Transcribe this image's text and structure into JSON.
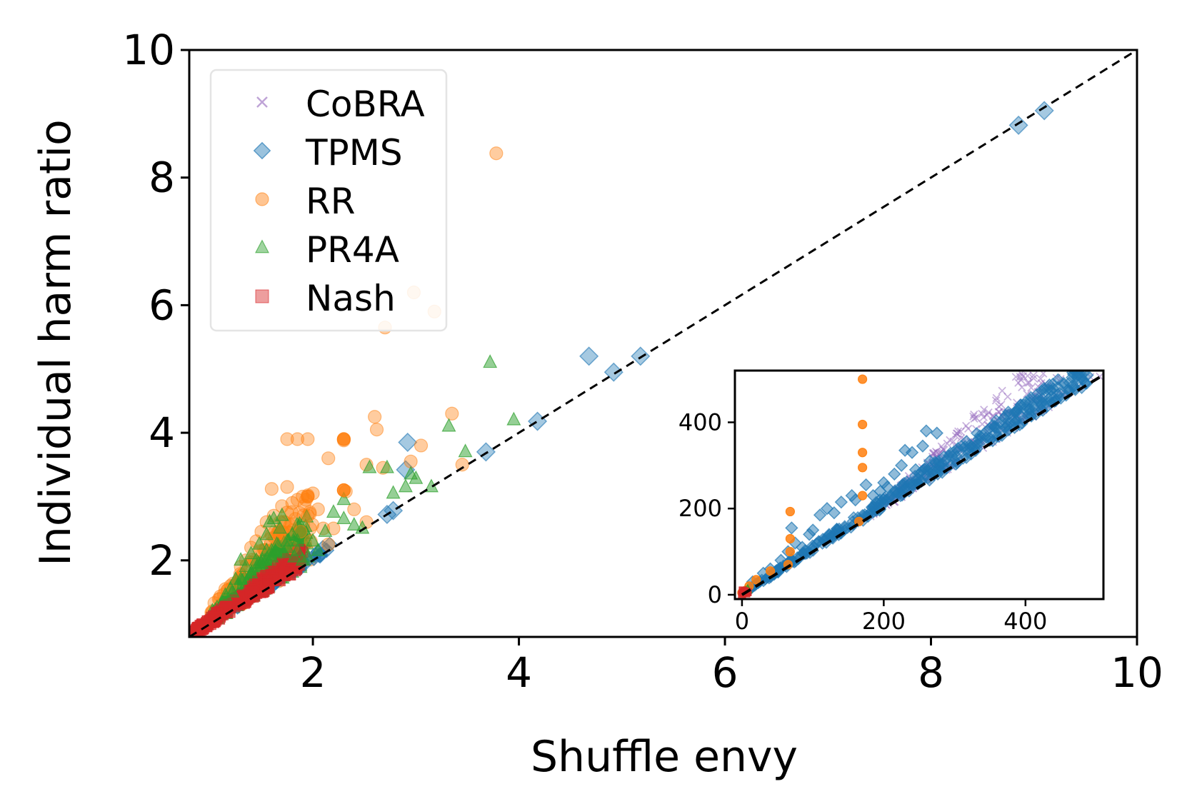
{
  "chart_data": [
    {
      "type": "scatter",
      "title": "",
      "xlabel": "Shuffle envy",
      "ylabel": "Individual harm ratio",
      "xlim": [
        0.8,
        10
      ],
      "ylim": [
        0.8,
        10
      ],
      "xticks": [
        2,
        4,
        6,
        8,
        10
      ],
      "yticks": [
        2,
        4,
        6,
        8,
        10
      ],
      "xtick_labels": [
        "2",
        "4",
        "6",
        "8",
        "10"
      ],
      "ytick_labels": [
        "2",
        "4",
        "6",
        "8",
        "10"
      ],
      "legend_position": "top-left",
      "reference_line": {
        "type": "y=x",
        "style": "dashed",
        "color": "#000000"
      },
      "series": [
        {
          "name": "CoBRA",
          "marker": "x",
          "color": "#9467bd",
          "points": []
        },
        {
          "name": "TPMS",
          "marker": "diamond",
          "color": "#1f77b4",
          "points": [
            [
              8.85,
              8.82
            ],
            [
              9.1,
              9.05
            ],
            [
              4.68,
              5.2
            ],
            [
              4.92,
              4.95
            ],
            [
              5.18,
              5.2
            ],
            [
              2.92,
              3.85
            ],
            [
              2.9,
              3.42
            ],
            [
              4.18,
              4.18
            ],
            [
              3.68,
              3.7
            ],
            [
              2.78,
              2.78
            ],
            [
              2.72,
              2.72
            ]
          ]
        },
        {
          "name": "RR",
          "marker": "circle",
          "color": "#ff7f0e",
          "points": [
            [
              3.78,
              8.38
            ],
            [
              2.98,
              6.2
            ],
            [
              3.18,
              5.9
            ],
            [
              2.7,
              5.65
            ],
            [
              2.6,
              4.25
            ],
            [
              2.62,
              4.05
            ],
            [
              2.3,
              3.9
            ],
            [
              2.3,
              3.88
            ],
            [
              1.75,
              3.9
            ],
            [
              1.85,
              3.9
            ],
            [
              1.95,
              3.9
            ],
            [
              3.35,
              4.3
            ],
            [
              3.05,
              3.8
            ],
            [
              2.95,
              3.55
            ],
            [
              2.52,
              3.5
            ],
            [
              2.68,
              3.45
            ],
            [
              3.45,
              3.5
            ],
            [
              2.15,
              3.6
            ],
            [
              2.3,
              3.1
            ],
            [
              2.32,
              3.08
            ],
            [
              1.6,
              3.12
            ],
            [
              1.75,
              3.15
            ],
            [
              1.9,
              3.0
            ],
            [
              2.0,
              3.05
            ],
            [
              1.8,
              2.9
            ],
            [
              1.7,
              2.85
            ],
            [
              1.62,
              2.7
            ],
            [
              1.55,
              2.6
            ],
            [
              1.75,
              2.75
            ],
            [
              1.85,
              2.95
            ],
            [
              1.95,
              3.02
            ],
            [
              2.05,
              2.8
            ],
            [
              2.1,
              2.5
            ],
            [
              2.2,
              2.5
            ],
            [
              2.15,
              2.25
            ],
            [
              1.98,
              2.3
            ],
            [
              1.88,
              2.45
            ],
            [
              1.78,
              2.55
            ],
            [
              1.68,
              2.6
            ],
            [
              1.5,
              2.45
            ],
            [
              1.45,
              2.3
            ],
            [
              1.4,
              2.2
            ],
            [
              1.35,
              2.0
            ],
            [
              1.3,
              1.9
            ],
            [
              1.6,
              2.4
            ],
            [
              1.7,
              2.3
            ],
            [
              1.8,
              2.2
            ],
            [
              2.4,
              2.8
            ],
            [
              2.52,
              2.6
            ],
            [
              1.95,
              2.7
            ],
            [
              1.2,
              1.6
            ],
            [
              1.15,
              1.55
            ]
          ]
        },
        {
          "name": "PR4A",
          "marker": "triangle",
          "color": "#2ca02c",
          "points": [
            [
              3.72,
              5.1
            ],
            [
              3.95,
              4.2
            ],
            [
              3.32,
              4.1
            ],
            [
              3.48,
              3.7
            ],
            [
              2.55,
              3.45
            ],
            [
              2.72,
              3.45
            ],
            [
              2.95,
              3.35
            ],
            [
              3.0,
              3.28
            ],
            [
              2.9,
              3.15
            ],
            [
              2.78,
              3.05
            ],
            [
              3.15,
              3.15
            ],
            [
              2.3,
              2.95
            ],
            [
              2.48,
              2.5
            ],
            [
              2.4,
              2.55
            ],
            [
              2.2,
              2.75
            ],
            [
              2.12,
              2.45
            ],
            [
              2.0,
              2.3
            ],
            [
              2.05,
              2.15
            ],
            [
              1.82,
              2.05
            ],
            [
              1.75,
              2.3
            ],
            [
              1.68,
              2.5
            ],
            [
              1.62,
              2.65
            ],
            [
              1.55,
              2.4
            ],
            [
              1.48,
              2.25
            ],
            [
              1.4,
              2.1
            ],
            [
              1.3,
              2.0
            ],
            [
              1.2,
              1.55
            ],
            [
              1.22,
              1.5
            ],
            [
              1.15,
              1.45
            ],
            [
              1.25,
              1.7
            ],
            [
              1.35,
              1.9
            ],
            [
              1.45,
              2.0
            ],
            [
              1.55,
              2.15
            ],
            [
              1.65,
              2.25
            ],
            [
              1.75,
              2.2
            ],
            [
              1.85,
              2.15
            ],
            [
              1.9,
              2.0
            ],
            [
              1.95,
              2.05
            ],
            [
              1.58,
              2.6
            ],
            [
              1.7,
              2.7
            ],
            [
              1.8,
              2.4
            ],
            [
              2.3,
              2.65
            ],
            [
              1.3,
              1.7
            ],
            [
              1.4,
              1.8
            ],
            [
              1.5,
              1.95
            ],
            [
              1.6,
              2.05
            ],
            [
              1.72,
              2.12
            ],
            [
              1.85,
              2.3
            ]
          ]
        },
        {
          "name": "Nash",
          "marker": "square",
          "color": "#d62728",
          "points": []
        }
      ]
    },
    {
      "type": "scatter",
      "role": "inset",
      "xlim": [
        -10,
        510
      ],
      "ylim": [
        -10,
        520
      ],
      "xticks": [
        0,
        200,
        400
      ],
      "yticks": [
        0,
        200,
        400
      ],
      "xtick_labels": [
        "0",
        "200",
        "400"
      ],
      "ytick_labels": [
        "0",
        "200",
        "400"
      ],
      "reference_line": {
        "type": "y=x",
        "style": "dashed",
        "color": "#000000"
      },
      "series": [
        {
          "name": "CoBRA",
          "marker": "x",
          "color": "#9467bd",
          "points": []
        },
        {
          "name": "TPMS",
          "marker": "diamond",
          "color": "#1f77b4",
          "points": [
            [
              260,
              380
            ],
            [
              275,
              375
            ],
            [
              240,
              330
            ],
            [
              230,
              335
            ],
            [
              255,
              345
            ],
            [
              200,
              260
            ],
            [
              205,
              250
            ],
            [
              175,
              255
            ],
            [
              195,
              240
            ],
            [
              155,
              230
            ],
            [
              140,
              215
            ],
            [
              120,
              200
            ],
            [
              130,
              190
            ],
            [
              160,
              220
            ],
            [
              185,
              230
            ],
            [
              215,
              280
            ],
            [
              225,
              300
            ],
            [
              245,
              290
            ],
            [
              265,
              310
            ],
            [
              110,
              185
            ],
            [
              100,
              150
            ],
            [
              95,
              140
            ],
            [
              75,
              120
            ],
            [
              85,
              110
            ],
            [
              55,
              80
            ],
            [
              40,
              60
            ],
            [
              30,
              50
            ],
            [
              65,
              100
            ],
            [
              70,
              155
            ],
            [
              20,
              25
            ],
            [
              15,
              30
            ]
          ]
        },
        {
          "name": "RR",
          "marker": "circle",
          "color": "#ff7f0e",
          "points": [
            [
              170,
              500
            ],
            [
              170,
              395
            ],
            [
              170,
              330
            ],
            [
              170,
              295
            ],
            [
              170,
              230
            ],
            [
              68,
              193
            ],
            [
              68,
              130
            ],
            [
              68,
              100
            ],
            [
              65,
              70
            ],
            [
              40,
              55
            ],
            [
              20,
              35
            ],
            [
              10,
              20
            ],
            [
              5,
              10
            ],
            [
              0,
              5
            ],
            [
              165,
              170
            ]
          ]
        },
        {
          "name": "PR4A",
          "marker": "triangle",
          "color": "#2ca02c",
          "points": [
            [
              5,
              8
            ],
            [
              8,
              12
            ]
          ]
        },
        {
          "name": "Nash",
          "marker": "square",
          "color": "#d62728",
          "points": [
            [
              0,
              0
            ],
            [
              2,
              5
            ],
            [
              4,
              8
            ],
            [
              6,
              3
            ],
            [
              1,
              10
            ],
            [
              8,
              6
            ]
          ]
        }
      ]
    }
  ]
}
